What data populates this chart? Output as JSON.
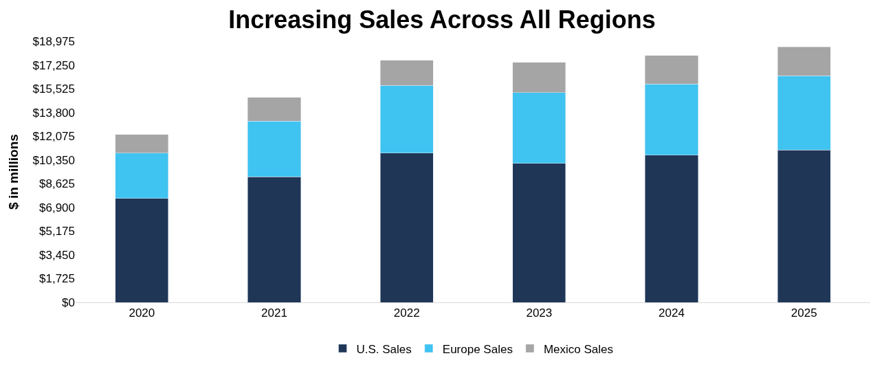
{
  "chart_data": {
    "type": "bar",
    "title": "Increasing Sales Across All Regions",
    "ylabel": "$ in millions",
    "categories": [
      "2020",
      "2021",
      "2022",
      "2023",
      "2024",
      "2025"
    ],
    "series": [
      {
        "name": "U.S. Sales",
        "color": "#1f3657",
        "values": [
          7550,
          9130,
          10860,
          10100,
          10710,
          11070
        ]
      },
      {
        "name": "Europe Sales",
        "color": "#3fc3f0",
        "values": [
          3310,
          4030,
          4900,
          5150,
          5150,
          5400
        ]
      },
      {
        "name": "Mexico Sales",
        "color": "#a5a5a5",
        "values": [
          1330,
          1730,
          1840,
          2190,
          2090,
          2090
        ]
      }
    ],
    "stacked": true,
    "ylim": [
      0,
      18975
    ],
    "yticks": [
      {
        "value": 0,
        "label": "$0"
      },
      {
        "value": 1725,
        "label": "$1,725"
      },
      {
        "value": 3450,
        "label": "$3,450"
      },
      {
        "value": 5175,
        "label": "$5,175"
      },
      {
        "value": 6900,
        "label": "$6,900"
      },
      {
        "value": 8625,
        "label": "$8,625"
      },
      {
        "value": 10350,
        "label": "$10,350"
      },
      {
        "value": 12075,
        "label": "$12,075"
      },
      {
        "value": 13800,
        "label": "$13,800"
      },
      {
        "value": 15525,
        "label": "$15,525"
      },
      {
        "value": 17250,
        "label": "$17,250"
      },
      {
        "value": 18975,
        "label": "$18,975"
      }
    ],
    "legend": "bottom"
  }
}
